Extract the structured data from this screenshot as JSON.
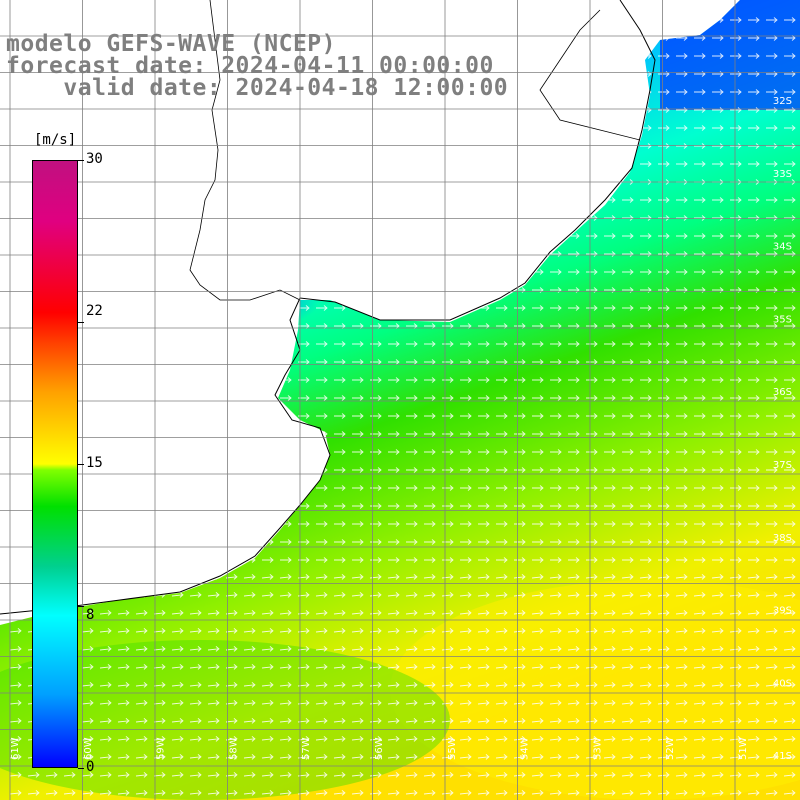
{
  "title": {
    "line1": "modelo GEFS-WAVE (NCEP)",
    "line2": "forecast date: 2024-04-11 00:00:00",
    "line3": "    valid date: 2024-04-18 12:00:00"
  },
  "colorbar": {
    "units": "[m/s]",
    "ticks": [
      {
        "value": 30,
        "label": "30"
      },
      {
        "value": 22,
        "label": "22"
      },
      {
        "value": 15,
        "label": "15"
      },
      {
        "value": 8,
        "label": "8"
      },
      {
        "value": 0,
        "label": "0"
      }
    ],
    "min": 0,
    "max": 30
  },
  "map": {
    "lat_labels": [
      "32S",
      "33S",
      "34S",
      "35S",
      "36S",
      "37S",
      "38S",
      "39S",
      "40S",
      "41S"
    ],
    "lon_labels": [
      "61W",
      "60W",
      "59W",
      "58W",
      "57W",
      "56W",
      "55W",
      "54W",
      "53W",
      "52W",
      "51W"
    ],
    "colors": {
      "land": "#ffffff",
      "coast": "#000000",
      "grid": "#7f7f7f",
      "arrow": "#ffffff"
    }
  }
}
